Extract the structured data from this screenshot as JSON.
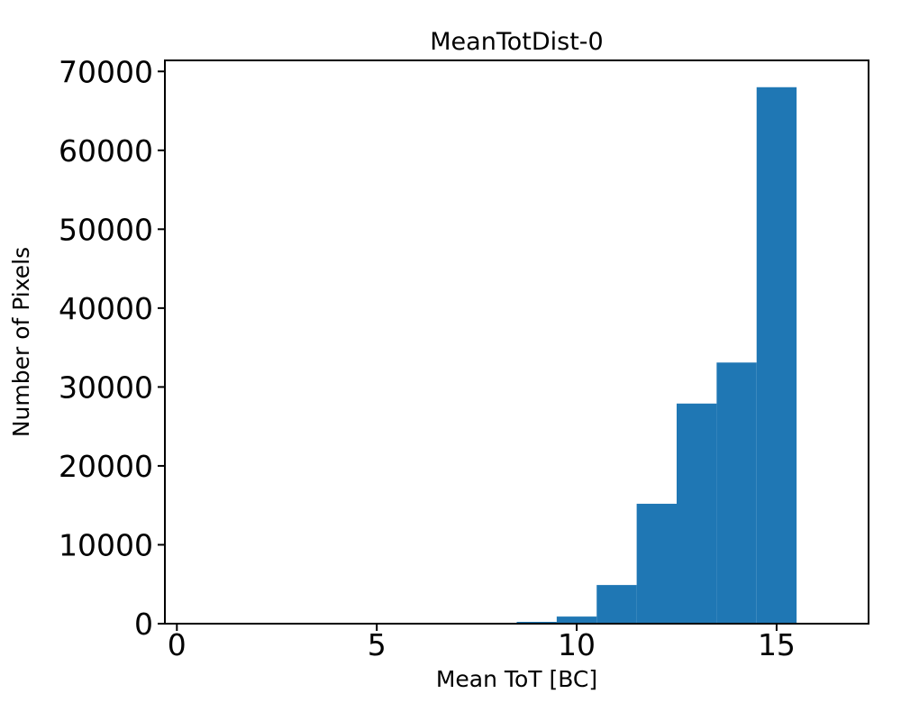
{
  "figure": {
    "title": "MeanTotDist-0",
    "xlabel": "Mean ToT [BC]",
    "ylabel": "Number of Pixels",
    "bar_color": "#1f77b4",
    "axis_color": "#000000",
    "background_color": "#ffffff"
  },
  "chart_data": {
    "type": "bar",
    "subtype": "histogram",
    "title": "MeanTotDist-0",
    "xlabel": "Mean ToT [BC]",
    "ylabel": "Number of Pixels",
    "bin_edges": [
      0.5,
      1.5,
      2.5,
      3.5,
      4.5,
      5.5,
      6.5,
      7.5,
      8.5,
      9.5,
      10.5,
      11.5,
      12.5,
      13.5,
      14.5,
      15.5,
      16.5
    ],
    "bin_centers": [
      1,
      2,
      3,
      4,
      5,
      6,
      7,
      8,
      9,
      10,
      11,
      12,
      13,
      14,
      15,
      16
    ],
    "values": [
      0,
      0,
      0,
      0,
      0,
      0,
      0,
      0,
      230,
      900,
      4900,
      15200,
      27900,
      33100,
      68000,
      0
    ],
    "xlim": [
      -0.3,
      17.3
    ],
    "ylim": [
      0,
      71400
    ],
    "xticks": [
      0,
      5,
      10,
      15
    ],
    "yticks": [
      0,
      10000,
      20000,
      30000,
      40000,
      50000,
      60000,
      70000
    ],
    "grid": false,
    "legend_position": "none",
    "bar_color": "#1f77b4"
  }
}
